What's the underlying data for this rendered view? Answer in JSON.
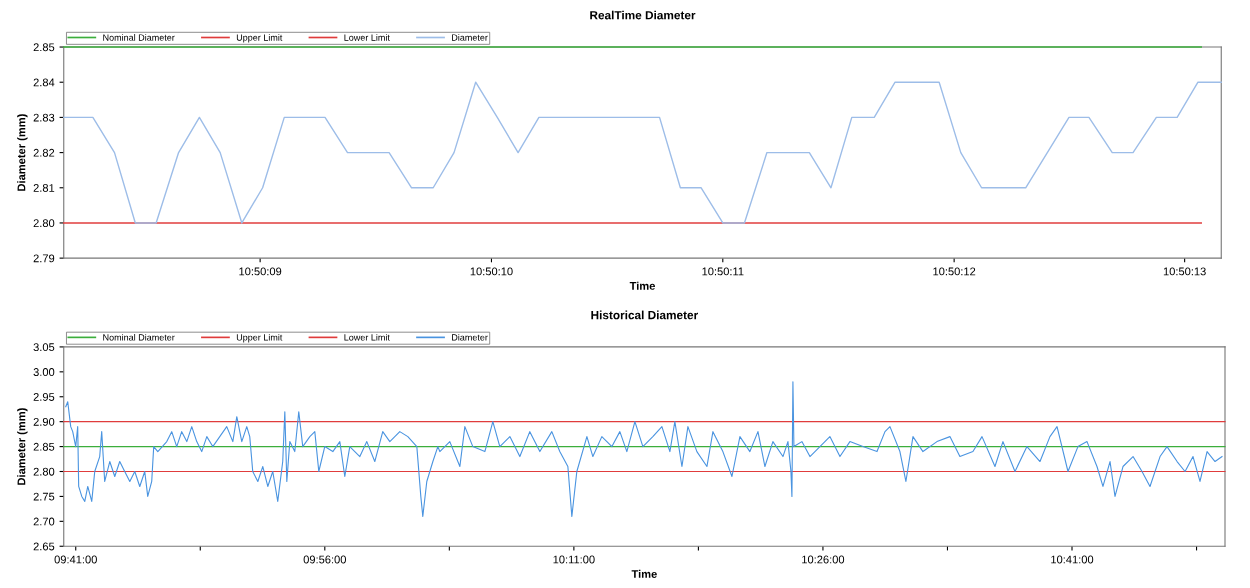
{
  "chart_data": [
    {
      "type": "line",
      "title": "RealTime Diameter",
      "xlabel": "Time",
      "ylabel": "Diameter (mm)",
      "legend": "top left",
      "grid": false,
      "xlim": [
        10.835597,
        10.836988
      ],
      "ylim": [
        2.79,
        2.85
      ],
      "xticks": [
        {
          "value": 10.835833,
          "label": "10:50:09"
        },
        {
          "value": 10.836111,
          "label": "10:50:10"
        },
        {
          "value": 10.836389,
          "label": "10:50:11"
        },
        {
          "value": 10.836667,
          "label": "10:50:12"
        },
        {
          "value": 10.836944,
          "label": "10:50:13"
        }
      ],
      "yticks": [
        {
          "value": 2.79,
          "label": "2.79"
        },
        {
          "value": 2.8,
          "label": "2.80"
        },
        {
          "value": 2.81,
          "label": "2.81"
        },
        {
          "value": 2.82,
          "label": "2.82"
        },
        {
          "value": 2.83,
          "label": "2.83"
        },
        {
          "value": 2.84,
          "label": "2.84"
        },
        {
          "value": 2.85,
          "label": "2.85"
        }
      ],
      "series": [
        {
          "name": "Nominal Diameter",
          "color": "#3cae3c",
          "x": [
            10.835597,
            10.836964
          ],
          "values": [
            2.85,
            2.85
          ]
        },
        {
          "name": "Upper Limit",
          "color": "#e03c3c"
        },
        {
          "name": "Lower Limit",
          "color": "#e03c3c",
          "x": [
            10.835597,
            10.836964
          ],
          "values": [
            2.8,
            2.8
          ]
        },
        {
          "name": "Diameter",
          "color": "#9dbde8",
          "x": [
            10.835597,
            10.835632,
            10.835658,
            10.835683,
            10.835708,
            10.835735,
            10.83576,
            10.835785,
            10.835811,
            10.835836,
            10.835862,
            10.835911,
            10.835938,
            10.835988,
            10.836015,
            10.836041,
            10.836066,
            10.836092,
            10.836118,
            10.836143,
            10.836168,
            10.836313,
            10.836338,
            10.836363,
            10.836389,
            10.836415,
            10.836442,
            10.836493,
            10.836519,
            10.836544,
            10.836571,
            10.836596,
            10.836649,
            10.836675,
            10.8367,
            10.836753,
            10.836805,
            10.836829,
            10.836857,
            10.836882,
            10.83691,
            10.836935,
            10.83696,
            10.836988
          ],
          "values": [
            2.83,
            2.83,
            2.82,
            2.8,
            2.8,
            2.82,
            2.83,
            2.82,
            2.8,
            2.81,
            2.83,
            2.83,
            2.82,
            2.82,
            2.81,
            2.81,
            2.82,
            2.84,
            2.83,
            2.82,
            2.83,
            2.83,
            2.81,
            2.81,
            2.8,
            2.8,
            2.82,
            2.82,
            2.81,
            2.83,
            2.83,
            2.84,
            2.84,
            2.82,
            2.81,
            2.81,
            2.83,
            2.83,
            2.82,
            2.82,
            2.83,
            2.83,
            2.84,
            2.84
          ]
        }
      ]
    },
    {
      "type": "line",
      "title": "Historical Diameter",
      "xlabel": "Time",
      "ylabel": "Diameter (mm)",
      "legend": "top left",
      "grid": false,
      "xlim": [
        9.6713,
        10.8369
      ],
      "ylim": [
        2.65,
        3.05
      ],
      "xticks": [
        {
          "value": 9.683333,
          "label": "09:41:00"
        },
        {
          "value": 9.808333,
          "label": null
        },
        {
          "value": 9.933333,
          "label": "09:56:00"
        },
        {
          "value": 10.058333,
          "label": null
        },
        {
          "value": 10.183333,
          "label": "10:11:00"
        },
        {
          "value": 10.308333,
          "label": null
        },
        {
          "value": 10.433333,
          "label": "10:26:00"
        },
        {
          "value": 10.558333,
          "label": null
        },
        {
          "value": 10.683333,
          "label": "10:41:00"
        },
        {
          "value": 10.808333,
          "label": null
        }
      ],
      "yticks": [
        {
          "value": 2.65,
          "label": "2.65"
        },
        {
          "value": 2.7,
          "label": "2.70"
        },
        {
          "value": 2.75,
          "label": "2.75"
        },
        {
          "value": 2.8,
          "label": "2.80"
        },
        {
          "value": 2.85,
          "label": "2.85"
        },
        {
          "value": 2.9,
          "label": "2.90"
        },
        {
          "value": 2.95,
          "label": "2.95"
        },
        {
          "value": 3.0,
          "label": "3.00"
        },
        {
          "value": 3.05,
          "label": "3.05"
        }
      ],
      "series": [
        {
          "name": "Nominal Diameter",
          "color": "#3cae3c",
          "x": [
            9.6713,
            10.8369
          ],
          "values": [
            2.85,
            2.85
          ]
        },
        {
          "name": "Upper Limit",
          "color": "#e03c3c",
          "x": [
            9.6713,
            10.8369
          ],
          "values": [
            2.9,
            2.9
          ]
        },
        {
          "name": "Lower Limit",
          "color": "#e03c3c",
          "x": [
            9.6713,
            10.8369
          ],
          "values": [
            2.8,
            2.8
          ]
        },
        {
          "name": "Diameter",
          "color": "#4a94e0",
          "x": [
            9.6733,
            9.6753,
            9.6783,
            9.6803,
            9.6833,
            9.6853,
            9.6863,
            9.6894,
            9.6924,
            9.6954,
            9.6994,
            9.7024,
            9.7074,
            9.7094,
            9.7124,
            9.7175,
            9.7225,
            9.7275,
            9.7325,
            9.7376,
            9.7426,
            9.7476,
            9.7526,
            9.7556,
            9.7596,
            9.7616,
            9.7657,
            9.7747,
            9.7797,
            9.7847,
            9.7897,
            9.7948,
            9.7998,
            9.8048,
            9.8098,
            9.8149,
            9.8209,
            9.8279,
            9.8349,
            9.841,
            9.845,
            9.85,
            9.855,
            9.858,
            9.861,
            9.8661,
            9.8711,
            9.8761,
            9.8811,
            9.8861,
            9.8911,
            9.8932,
            9.8952,
            9.8982,
            9.9032,
            9.9072,
            9.9112,
            9.9183,
            9.9233,
            9.9273,
            9.9333,
            9.9414,
            9.9484,
            9.9534,
            9.9584,
            9.9685,
            9.9755,
            9.9835,
            9.9915,
            9.9986,
            10.0086,
            10.0167,
            10.0257,
            10.0297,
            10.0317,
            10.0357,
            10.0418,
            10.0468,
            10.0488,
            10.0588,
            10.0689,
            10.0739,
            10.0819,
            10.094,
            10.102,
            10.109,
            10.1191,
            10.1291,
            10.1391,
            10.1492,
            10.1612,
            10.1692,
            10.1773,
            10.1813,
            10.1863,
            10.1964,
            10.2024,
            10.2114,
            10.2215,
            10.2295,
            10.2365,
            10.2446,
            10.2526,
            10.2626,
            10.2717,
            10.2797,
            10.2847,
            10.2918,
            10.2978,
            10.3068,
            10.3169,
            10.3229,
            10.3329,
            10.342,
            10.35,
            10.36,
            10.3681,
            10.3751,
            10.3831,
            10.3932,
            10.3982,
            10.4012,
            10.4022,
            10.4032,
            10.4042,
            10.4122,
            10.4203,
            10.4303,
            10.4403,
            10.4504,
            10.4604,
            10.4735,
            10.4876,
            10.4956,
            10.5006,
            10.5106,
            10.5166,
            10.5237,
            10.5337,
            10.5478,
            10.5608,
            10.5708,
            10.5839,
            10.593,
            10.606,
            10.614,
            10.6261,
            10.6381,
            10.6512,
            10.6612,
            10.6683,
            10.6793,
            10.6893,
            10.6984,
            10.7084,
            10.7144,
            10.7215,
            10.7265,
            10.7345,
            10.7446,
            10.7536,
            10.7616,
            10.7717,
            10.7787,
            10.7888,
            10.7968,
            10.8048,
            10.8118,
            10.8189,
            10.8269,
            10.8339
          ],
          "values": [
            2.93,
            2.94,
            2.89,
            2.88,
            2.85,
            2.89,
            2.77,
            2.75,
            2.74,
            2.77,
            2.74,
            2.8,
            2.83,
            2.88,
            2.78,
            2.82,
            2.79,
            2.82,
            2.8,
            2.78,
            2.8,
            2.77,
            2.8,
            2.75,
            2.78,
            2.85,
            2.84,
            2.86,
            2.88,
            2.85,
            2.88,
            2.86,
            2.89,
            2.86,
            2.84,
            2.87,
            2.85,
            2.87,
            2.89,
            2.86,
            2.91,
            2.86,
            2.89,
            2.87,
            2.8,
            2.78,
            2.81,
            2.77,
            2.8,
            2.74,
            2.82,
            2.92,
            2.78,
            2.86,
            2.84,
            2.92,
            2.85,
            2.87,
            2.88,
            2.8,
            2.85,
            2.84,
            2.86,
            2.79,
            2.85,
            2.83,
            2.86,
            2.82,
            2.88,
            2.86,
            2.88,
            2.87,
            2.85,
            2.75,
            2.71,
            2.78,
            2.82,
            2.85,
            2.84,
            2.86,
            2.81,
            2.89,
            2.85,
            2.84,
            2.9,
            2.85,
            2.87,
            2.83,
            2.88,
            2.84,
            2.88,
            2.84,
            2.81,
            2.71,
            2.8,
            2.87,
            2.83,
            2.87,
            2.85,
            2.88,
            2.84,
            2.9,
            2.85,
            2.87,
            2.89,
            2.84,
            2.9,
            2.81,
            2.89,
            2.84,
            2.81,
            2.88,
            2.84,
            2.79,
            2.87,
            2.84,
            2.88,
            2.81,
            2.86,
            2.83,
            2.86,
            2.8,
            2.75,
            2.98,
            2.85,
            2.86,
            2.83,
            2.85,
            2.87,
            2.83,
            2.86,
            2.85,
            2.84,
            2.88,
            2.89,
            2.84,
            2.78,
            2.87,
            2.84,
            2.86,
            2.87,
            2.83,
            2.84,
            2.87,
            2.81,
            2.86,
            2.8,
            2.85,
            2.82,
            2.87,
            2.89,
            2.8,
            2.85,
            2.86,
            2.81,
            2.77,
            2.82,
            2.75,
            2.81,
            2.83,
            2.8,
            2.77,
            2.83,
            2.85,
            2.82,
            2.8,
            2.83,
            2.78,
            2.84,
            2.82,
            2.83
          ]
        }
      ]
    }
  ]
}
